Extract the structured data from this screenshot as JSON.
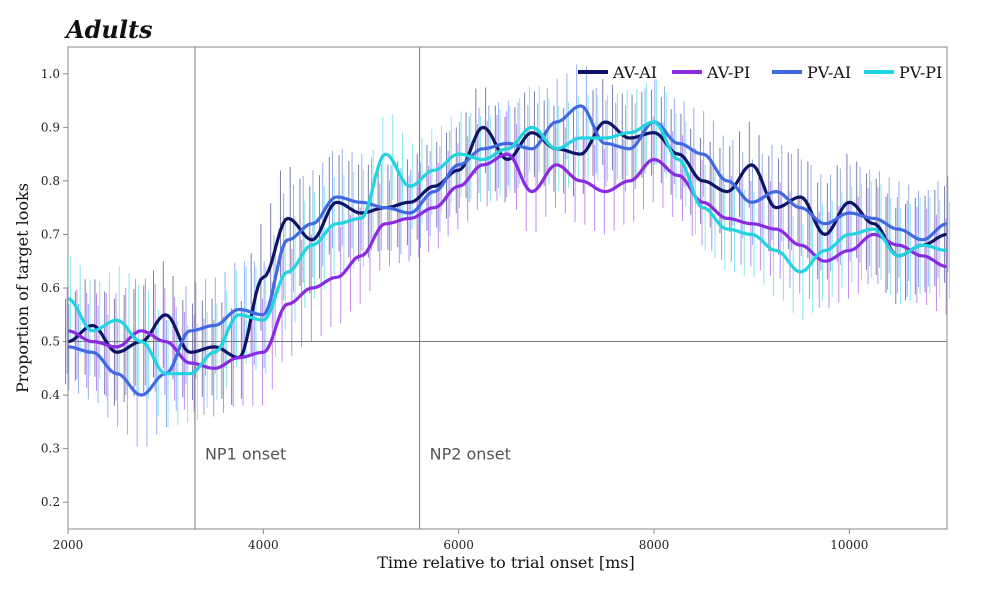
{
  "chart_data": {
    "type": "line",
    "title": "Adults",
    "xlabel": "Time relative to trial onset [ms]",
    "ylabel": "Proportion of target looks",
    "xlim": [
      2000,
      11000
    ],
    "ylim": [
      0.15,
      1.05
    ],
    "xticks": [
      2000,
      4000,
      6000,
      8000,
      10000
    ],
    "xtick_labels": [
      "2000",
      "4000",
      "6000",
      "8000",
      "10000"
    ],
    "yticks": [
      0.2,
      0.3,
      0.4,
      0.5,
      0.6,
      0.7,
      0.8,
      0.9,
      1.0
    ],
    "ytick_labels": [
      "0.2",
      "0.3",
      "0.4",
      "0.5",
      "0.6",
      "0.7",
      "0.8",
      "0.9",
      "1.0"
    ],
    "legend_position": "top-right",
    "reference_lines": {
      "vertical": [
        {
          "x": 3300,
          "label": "NP1 onset"
        },
        {
          "x": 5600,
          "label": "NP2 onset"
        }
      ],
      "horizontal": [
        {
          "y": 0.5
        }
      ]
    },
    "x": [
      2000,
      2250,
      2500,
      2750,
      3000,
      3250,
      3500,
      3750,
      4000,
      4250,
      4500,
      4750,
      5000,
      5250,
      5500,
      5750,
      6000,
      6250,
      6500,
      6750,
      7000,
      7250,
      7500,
      7750,
      8000,
      8250,
      8500,
      8750,
      9000,
      9250,
      9500,
      9750,
      10000,
      10250,
      10500,
      10750,
      11000
    ],
    "series": [
      {
        "name": "AV-AI",
        "color": "#0d1466",
        "values": [
          0.5,
          0.53,
          0.48,
          0.5,
          0.55,
          0.48,
          0.49,
          0.47,
          0.62,
          0.73,
          0.69,
          0.76,
          0.74,
          0.75,
          0.76,
          0.79,
          0.82,
          0.9,
          0.84,
          0.89,
          0.86,
          0.85,
          0.91,
          0.88,
          0.89,
          0.85,
          0.8,
          0.78,
          0.83,
          0.75,
          0.77,
          0.7,
          0.76,
          0.72,
          0.66,
          0.68,
          0.7
        ],
        "errors": [
          0.08,
          0.09,
          0.1,
          0.1,
          0.1,
          0.09,
          0.09,
          0.09,
          0.1,
          0.1,
          0.1,
          0.09,
          0.09,
          0.08,
          0.08,
          0.08,
          0.08,
          0.08,
          0.08,
          0.08,
          0.08,
          0.08,
          0.08,
          0.08,
          0.08,
          0.08,
          0.08,
          0.08,
          0.08,
          0.09,
          0.09,
          0.09,
          0.09,
          0.09,
          0.09,
          0.09,
          0.09
        ]
      },
      {
        "name": "AV-PI",
        "color": "#8a2be2",
        "values": [
          0.52,
          0.5,
          0.49,
          0.52,
          0.5,
          0.46,
          0.45,
          0.47,
          0.48,
          0.57,
          0.6,
          0.62,
          0.66,
          0.72,
          0.73,
          0.75,
          0.79,
          0.83,
          0.85,
          0.78,
          0.83,
          0.8,
          0.78,
          0.8,
          0.84,
          0.81,
          0.76,
          0.73,
          0.72,
          0.71,
          0.68,
          0.65,
          0.67,
          0.7,
          0.68,
          0.66,
          0.64
        ],
        "errors": [
          0.08,
          0.09,
          0.1,
          0.1,
          0.1,
          0.09,
          0.09,
          0.09,
          0.1,
          0.1,
          0.1,
          0.09,
          0.09,
          0.08,
          0.08,
          0.08,
          0.08,
          0.08,
          0.08,
          0.08,
          0.08,
          0.08,
          0.08,
          0.08,
          0.08,
          0.08,
          0.08,
          0.08,
          0.08,
          0.09,
          0.09,
          0.09,
          0.09,
          0.09,
          0.09,
          0.09,
          0.09
        ]
      },
      {
        "name": "PV-AI",
        "color": "#4169e1",
        "values": [
          0.49,
          0.48,
          0.44,
          0.4,
          0.44,
          0.52,
          0.53,
          0.56,
          0.55,
          0.69,
          0.72,
          0.77,
          0.76,
          0.75,
          0.74,
          0.78,
          0.83,
          0.86,
          0.87,
          0.86,
          0.91,
          0.94,
          0.87,
          0.86,
          0.91,
          0.87,
          0.85,
          0.8,
          0.76,
          0.78,
          0.75,
          0.72,
          0.74,
          0.73,
          0.71,
          0.69,
          0.72
        ],
        "errors": [
          0.08,
          0.09,
          0.1,
          0.1,
          0.1,
          0.09,
          0.09,
          0.09,
          0.1,
          0.1,
          0.1,
          0.09,
          0.09,
          0.08,
          0.08,
          0.08,
          0.08,
          0.08,
          0.08,
          0.08,
          0.08,
          0.08,
          0.08,
          0.08,
          0.08,
          0.08,
          0.08,
          0.08,
          0.08,
          0.09,
          0.09,
          0.09,
          0.09,
          0.09,
          0.09,
          0.09,
          0.09
        ]
      },
      {
        "name": "PV-PI",
        "color": "#22d3e0",
        "values": [
          0.58,
          0.52,
          0.54,
          0.5,
          0.44,
          0.44,
          0.48,
          0.55,
          0.54,
          0.63,
          0.68,
          0.72,
          0.73,
          0.85,
          0.79,
          0.82,
          0.85,
          0.84,
          0.86,
          0.9,
          0.86,
          0.88,
          0.88,
          0.89,
          0.91,
          0.84,
          0.75,
          0.71,
          0.7,
          0.67,
          0.63,
          0.67,
          0.7,
          0.71,
          0.66,
          0.68,
          0.67
        ],
        "errors": [
          0.08,
          0.09,
          0.1,
          0.1,
          0.1,
          0.09,
          0.09,
          0.09,
          0.1,
          0.1,
          0.1,
          0.09,
          0.09,
          0.08,
          0.08,
          0.08,
          0.08,
          0.08,
          0.08,
          0.08,
          0.08,
          0.08,
          0.08,
          0.08,
          0.08,
          0.08,
          0.08,
          0.08,
          0.08,
          0.09,
          0.09,
          0.09,
          0.09,
          0.09,
          0.09,
          0.09,
          0.09
        ]
      }
    ]
  }
}
